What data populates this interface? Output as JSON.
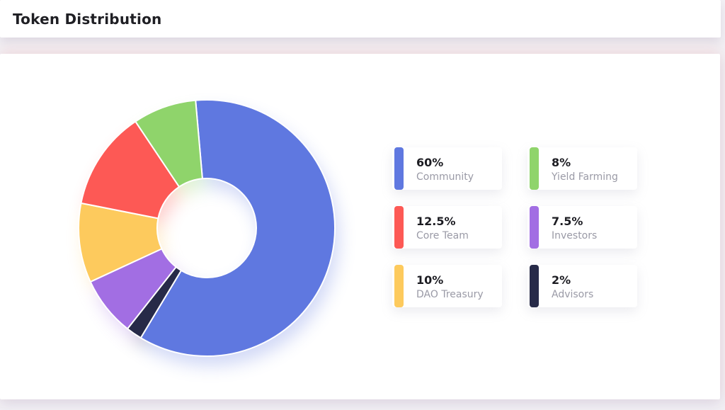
{
  "header": {
    "title": "Token Distribution"
  },
  "chart_data": {
    "type": "pie",
    "title": "",
    "slices": [
      {
        "label": "Community",
        "value": 60,
        "display": "60%",
        "color": "#5f78e0"
      },
      {
        "label": "Advisors",
        "value": 2,
        "display": "2%",
        "color": "#272a48"
      },
      {
        "label": "Investors",
        "value": 7.5,
        "display": "7.5%",
        "color": "#a26ee3"
      },
      {
        "label": "DAO Treasury",
        "value": 10,
        "display": "10%",
        "color": "#fdca5d"
      },
      {
        "label": "Core Team",
        "value": 12.5,
        "display": "12.5%",
        "color": "#fd5955"
      },
      {
        "label": "Yield Farming",
        "value": 8,
        "display": "8%",
        "color": "#8fd46b"
      }
    ],
    "legend_order": [
      "Community",
      "Yield Farming",
      "Core Team",
      "Investors",
      "DAO Treasury",
      "Advisors"
    ]
  }
}
